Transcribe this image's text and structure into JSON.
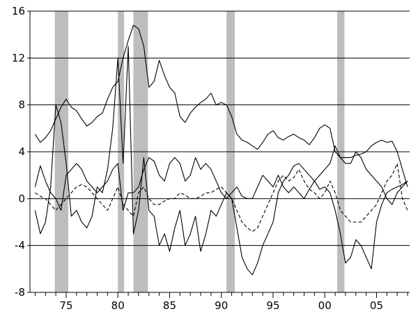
{
  "chart_data": {
    "type": "line",
    "title": "",
    "xlabel": "",
    "ylabel": "",
    "xlim": [
      1971.5,
      2008.2
    ],
    "ylim": [
      -8,
      16
    ],
    "y_ticks": [
      {
        "value": -8,
        "label": "-8"
      },
      {
        "value": -4,
        "label": "-4"
      },
      {
        "value": 0,
        "label": "0"
      },
      {
        "value": 4,
        "label": "4"
      },
      {
        "value": 8,
        "label": "8"
      },
      {
        "value": 12,
        "label": "12"
      },
      {
        "value": 16,
        "label": "16"
      }
    ],
    "x_ticks": [
      {
        "value": 1975,
        "label": "75"
      },
      {
        "value": 1980,
        "label": "80"
      },
      {
        "value": 1985,
        "label": "85"
      },
      {
        "value": 1990,
        "label": "90"
      },
      {
        "value": 1995,
        "label": "95"
      },
      {
        "value": 2000,
        "label": "00"
      },
      {
        "value": 2005,
        "label": "05"
      }
    ],
    "grid": "horizontal",
    "legend": "none",
    "colors": {
      "line": "#000000",
      "recession": "#bdbdbd",
      "grid": "#000000"
    },
    "recession_bands": [
      [
        1973.9,
        1975.2
      ],
      [
        1980.0,
        1980.6
      ],
      [
        1981.5,
        1982.9
      ],
      [
        1990.5,
        1991.3
      ],
      [
        2001.2,
        2001.9
      ]
    ],
    "series": [
      {
        "style": "solid",
        "x": [
          1972.0,
          1972.5,
          1973.0,
          1973.5,
          1974.0,
          1974.5,
          1975.0,
          1975.5,
          1976.0,
          1976.5,
          1977.0,
          1977.5,
          1978.0,
          1978.5,
          1979.0,
          1979.5,
          1980.0,
          1980.5,
          1981.0,
          1981.5,
          1982.0,
          1982.5,
          1983.0,
          1983.5,
          1984.0,
          1984.5,
          1985.0,
          1985.5,
          1986.0,
          1986.5,
          1987.0,
          1987.5,
          1988.0,
          1988.5,
          1989.0,
          1989.5,
          1990.0,
          1990.5,
          1991.0,
          1991.5,
          1992.0,
          1992.5,
          1993.0,
          1993.5,
          1994.0,
          1994.5,
          1995.0,
          1995.5,
          1996.0,
          1996.5,
          1997.0,
          1997.5,
          1998.0,
          1998.5,
          1999.0,
          1999.5,
          2000.0,
          2000.5,
          2001.0,
          2001.5,
          2002.0,
          2002.5,
          2003.0,
          2003.5,
          2004.0,
          2004.5,
          2005.0,
          2005.5,
          2006.0,
          2006.5,
          2007.0,
          2007.5,
          2008.0
        ],
        "y": [
          5.5,
          4.8,
          5.2,
          5.8,
          6.8,
          7.8,
          8.5,
          7.8,
          7.5,
          6.8,
          6.2,
          6.5,
          7.0,
          7.3,
          8.5,
          9.5,
          10.0,
          12.0,
          13.5,
          14.8,
          14.5,
          13.0,
          9.5,
          10.0,
          11.8,
          10.5,
          9.5,
          9.0,
          7.0,
          6.5,
          7.3,
          7.8,
          8.2,
          8.5,
          9.0,
          8.0,
          8.2,
          8.0,
          7.0,
          5.5,
          5.0,
          4.8,
          4.5,
          4.2,
          4.8,
          5.5,
          5.8,
          5.2,
          5.0,
          5.3,
          5.5,
          5.2,
          5.0,
          4.6,
          5.2,
          6.0,
          6.3,
          6.0,
          4.0,
          3.5,
          3.5,
          3.5,
          3.7,
          3.8,
          4.0,
          4.5,
          4.8,
          5.0,
          4.8,
          4.9,
          4.0,
          2.5,
          1.0
        ]
      },
      {
        "style": "solid",
        "x": [
          1972.0,
          1972.5,
          1973.0,
          1973.5,
          1974.0,
          1974.5,
          1975.0,
          1975.5,
          1976.0,
          1976.5,
          1977.0,
          1977.5,
          1978.0,
          1978.5,
          1979.0,
          1979.5,
          1980.0,
          1980.5,
          1981.0,
          1981.5,
          1982.0,
          1982.5,
          1983.0,
          1983.5,
          1984.0,
          1984.5,
          1985.0,
          1985.5,
          1986.0,
          1986.5,
          1987.0,
          1987.5,
          1988.0,
          1988.5,
          1989.0,
          1989.5,
          1990.0,
          1990.5,
          1991.0,
          1991.5,
          1992.0,
          1992.5,
          1993.0,
          1993.5,
          1994.0,
          1994.5,
          1995.0,
          1995.5,
          1996.0,
          1996.5,
          1997.0,
          1997.5,
          1998.0,
          1998.5,
          1999.0,
          1999.5,
          2000.0,
          2000.5,
          2001.0,
          2001.5,
          2002.0,
          2002.5,
          2003.0,
          2003.5,
          2004.0,
          2004.5,
          2005.0,
          2005.5,
          2006.0,
          2006.5,
          2007.0,
          2007.5,
          2008.0
        ],
        "y": [
          -1.0,
          -3.0,
          -2.0,
          1.0,
          8.0,
          6.5,
          3.0,
          -1.5,
          -1.0,
          -2.0,
          -2.5,
          -1.5,
          1.0,
          0.5,
          2.5,
          6.0,
          12.0,
          3.0,
          13.0,
          -3.0,
          -1.0,
          3.5,
          -1.0,
          -1.5,
          -4.0,
          -3.0,
          -4.5,
          -2.5,
          -1.0,
          -4.0,
          -3.0,
          -1.5,
          -4.5,
          -3.0,
          -1.0,
          -1.5,
          -0.5,
          0.5,
          0.0,
          -2.5,
          -5.0,
          -6.0,
          -6.5,
          -5.5,
          -4.0,
          -3.0,
          -2.0,
          0.5,
          1.5,
          2.0,
          2.8,
          3.0,
          2.5,
          2.0,
          1.5,
          0.8,
          1.0,
          0.5,
          -1.0,
          -3.0,
          -5.5,
          -5.0,
          -3.5,
          -4.0,
          -5.0,
          -6.0,
          -2.0,
          -0.5,
          0.5,
          0.8,
          1.0,
          1.2,
          1.5
        ]
      },
      {
        "style": "solid",
        "x": [
          1972.0,
          1972.5,
          1973.0,
          1973.5,
          1974.0,
          1974.5,
          1975.0,
          1975.5,
          1976.0,
          1976.5,
          1977.0,
          1977.5,
          1978.0,
          1978.5,
          1979.0,
          1979.5,
          1980.0,
          1980.5,
          1981.0,
          1981.5,
          1982.0,
          1982.5,
          1983.0,
          1983.5,
          1984.0,
          1984.5,
          1985.0,
          1985.5,
          1986.0,
          1986.5,
          1987.0,
          1987.5,
          1988.0,
          1988.5,
          1989.0,
          1989.5,
          1990.0,
          1990.5,
          1991.0,
          1991.5,
          1992.0,
          1992.5,
          1993.0,
          1993.5,
          1994.0,
          1994.5,
          1995.0,
          1995.5,
          1996.0,
          1996.5,
          1997.0,
          1997.5,
          1998.0,
          1998.5,
          1999.0,
          1999.5,
          2000.0,
          2000.5,
          2001.0,
          2001.5,
          2002.0,
          2002.5,
          2003.0,
          2003.5,
          2004.0,
          2004.5,
          2005.0,
          2005.5,
          2006.0,
          2006.5,
          2007.0,
          2007.5,
          2008.0
        ],
        "y": [
          1.0,
          2.8,
          1.5,
          0.5,
          0.0,
          -1.0,
          2.0,
          2.5,
          3.0,
          2.5,
          1.5,
          1.0,
          0.5,
          1.0,
          1.5,
          2.5,
          3.0,
          -1.0,
          0.5,
          0.5,
          1.0,
          2.5,
          3.5,
          3.2,
          2.0,
          1.5,
          3.0,
          3.5,
          3.0,
          1.5,
          2.0,
          3.5,
          2.5,
          3.0,
          2.5,
          1.5,
          0.5,
          0.0,
          0.5,
          1.0,
          0.2,
          0.0,
          0.0,
          1.0,
          2.0,
          1.5,
          1.0,
          2.0,
          1.0,
          0.5,
          1.0,
          0.5,
          0.0,
          0.8,
          1.5,
          2.0,
          2.5,
          3.0,
          4.5,
          3.5,
          3.0,
          3.0,
          4.0,
          3.5,
          2.5,
          2.0,
          1.5,
          1.0,
          0.0,
          -0.5,
          0.5,
          1.0,
          1.5
        ]
      },
      {
        "style": "dashed",
        "x": [
          1972.0,
          1972.5,
          1973.0,
          1973.5,
          1974.0,
          1974.5,
          1975.0,
          1975.5,
          1976.0,
          1976.5,
          1977.0,
          1977.5,
          1978.0,
          1978.5,
          1979.0,
          1979.5,
          1980.0,
          1980.5,
          1981.0,
          1981.5,
          1982.0,
          1982.5,
          1983.0,
          1983.5,
          1984.0,
          1984.5,
          1985.0,
          1985.5,
          1986.0,
          1986.5,
          1987.0,
          1987.5,
          1988.0,
          1988.5,
          1989.0,
          1989.5,
          1990.0,
          1990.5,
          1991.0,
          1991.5,
          1992.0,
          1992.5,
          1993.0,
          1993.5,
          1994.0,
          1994.5,
          1995.0,
          1995.5,
          1996.0,
          1996.5,
          1997.0,
          1997.5,
          1998.0,
          1998.5,
          1999.0,
          1999.5,
          2000.0,
          2000.5,
          2001.0,
          2001.5,
          2002.0,
          2002.5,
          2003.0,
          2003.5,
          2004.0,
          2004.5,
          2005.0,
          2005.5,
          2006.0,
          2006.5,
          2007.0,
          2007.5,
          2008.0
        ],
        "y": [
          0.5,
          0.2,
          0.0,
          -0.5,
          -1.0,
          -0.5,
          0.0,
          0.5,
          1.0,
          1.2,
          1.0,
          0.5,
          0.0,
          -0.5,
          -1.0,
          0.0,
          1.0,
          -0.5,
          -1.0,
          -1.5,
          0.5,
          1.0,
          0.0,
          -0.5,
          -0.5,
          -0.2,
          0.0,
          0.0,
          0.5,
          0.3,
          0.0,
          0.0,
          0.2,
          0.5,
          0.5,
          0.8,
          1.0,
          0.5,
          0.0,
          -1.0,
          -2.0,
          -2.5,
          -2.8,
          -2.5,
          -1.5,
          -0.5,
          0.5,
          1.5,
          2.0,
          1.5,
          1.8,
          2.5,
          1.5,
          0.8,
          0.5,
          0.0,
          0.5,
          1.5,
          0.5,
          -1.0,
          -1.5,
          -2.0,
          -2.0,
          -2.0,
          -1.5,
          -1.0,
          -0.5,
          0.5,
          1.5,
          2.0,
          3.0,
          0.0,
          -1.0
        ]
      }
    ]
  }
}
